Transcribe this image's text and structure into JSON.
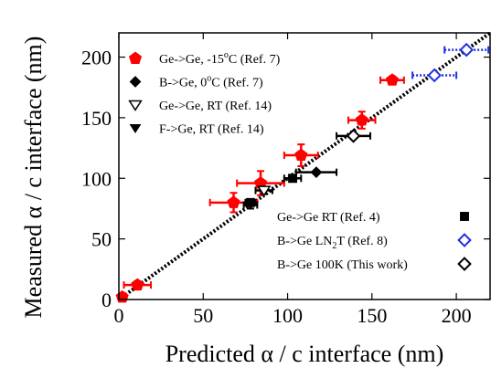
{
  "chart_data": {
    "type": "scatter",
    "xlabel": "Predicted α / c interface (nm)",
    "ylabel": "Measured α / c interface (nm)",
    "xlim": [
      0,
      220
    ],
    "ylim": [
      0,
      220
    ],
    "xticks": [
      0,
      50,
      100,
      150,
      200
    ],
    "yticks": [
      0,
      50,
      100,
      150,
      200
    ],
    "x_tick_labels": [
      "0",
      "50",
      "100",
      "150",
      "200"
    ],
    "y_tick_labels": [
      "0",
      "50",
      "100",
      "150",
      "200"
    ],
    "reference_line": {
      "style": "dotted",
      "from": [
        0,
        0
      ],
      "to": [
        220,
        220
      ]
    },
    "series": [
      {
        "name_parts": [
          "Ge->Ge, -15",
          "o",
          "C (Ref. 7)"
        ],
        "marker": "pentagon",
        "color": "#ff0000",
        "points": [
          {
            "x": 2,
            "y": 2,
            "xerr": 2,
            "yerr": 0
          },
          {
            "x": 11,
            "y": 12,
            "xerr": 8,
            "yerr": 3
          },
          {
            "x": 68,
            "y": 80,
            "xerr": 14,
            "yerr": 8
          },
          {
            "x": 84,
            "y": 96,
            "xerr": 14,
            "yerr": 10
          },
          {
            "x": 108,
            "y": 119,
            "xerr": 10,
            "yerr": 9
          },
          {
            "x": 144,
            "y": 148,
            "xerr": 8,
            "yerr": 7
          },
          {
            "x": 162,
            "y": 181,
            "xerr": 7,
            "yerr": 3
          }
        ]
      },
      {
        "name_parts": [
          "B->Ge, 0",
          "o",
          "C (Ref. 7)"
        ],
        "marker": "diamond",
        "color": "#000000",
        "points": [
          {
            "x": 117,
            "y": 105,
            "xerr": 12,
            "yerr": 0
          }
        ]
      },
      {
        "name_parts": [
          "Ge->Ge, RT (Ref. 14)"
        ],
        "marker": "triangle-down-open",
        "color": "#000000",
        "points": [
          {
            "x": 86,
            "y": 90,
            "xerr": 5,
            "yerr": 3
          }
        ]
      },
      {
        "name_parts": [
          "F->Ge, RT (Ref. 14)"
        ],
        "marker": "triangle-down",
        "color": "#000000",
        "points": [
          {
            "x": 78,
            "y": 78,
            "xerr": 4,
            "yerr": 3
          }
        ]
      },
      {
        "name_parts": [
          "Ge->Ge RT (Ref. 4)"
        ],
        "marker": "square",
        "color": "#000000",
        "points": [
          {
            "x": 78,
            "y": 80,
            "xerr": 3,
            "yerr": 2
          },
          {
            "x": 103,
            "y": 100,
            "xerr": 5,
            "yerr": 2
          }
        ]
      },
      {
        "name_parts": [
          "B->Ge LN",
          "2",
          "T (Ref. 8)"
        ],
        "marker": "diamond-open",
        "color": "#1e32e6",
        "errorbar_style": "dotted",
        "points": [
          {
            "x": 187,
            "y": 185,
            "xerr": 13,
            "yerr": 0
          },
          {
            "x": 206,
            "y": 206,
            "xerr": 13,
            "yerr": 0
          }
        ]
      },
      {
        "name_parts": [
          "B->Ge 100K (This work)"
        ],
        "marker": "diamond-open",
        "color": "#000000",
        "points": [
          {
            "x": 139,
            "y": 135,
            "xerr": 10,
            "yerr": 0
          }
        ]
      }
    ],
    "legends": [
      {
        "placement": "top-left",
        "series": [
          0,
          1,
          2,
          3
        ],
        "marker_side": "left"
      },
      {
        "placement": "bottom-right",
        "series": [
          4,
          5,
          6
        ],
        "marker_side": "right"
      }
    ]
  }
}
